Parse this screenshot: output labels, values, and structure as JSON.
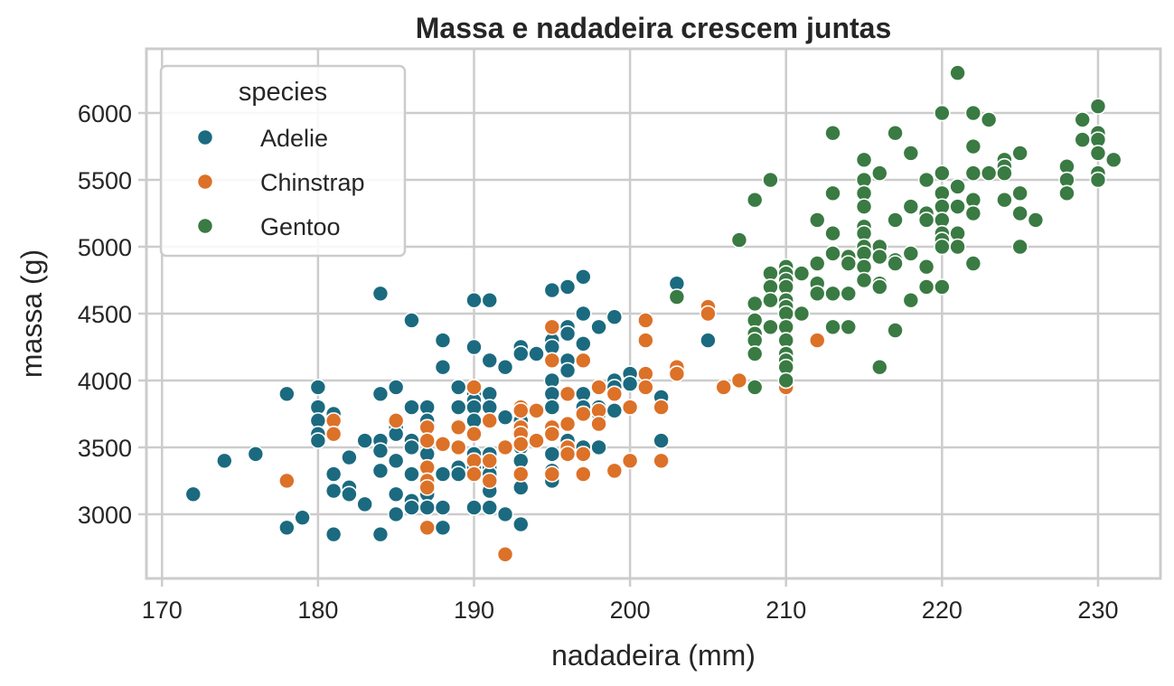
{
  "chart_data": {
    "type": "scatter",
    "title": "Massa e nadadeira crescem juntas",
    "xlabel": "nadadeira (mm)",
    "ylabel": "massa (g)",
    "xlim": [
      169,
      234
    ],
    "ylim": [
      2520,
      6480
    ],
    "xticks": [
      170,
      180,
      190,
      200,
      210,
      220,
      230
    ],
    "yticks": [
      3000,
      3500,
      4000,
      4500,
      5000,
      5500,
      6000
    ],
    "grid": true,
    "legend": {
      "title": "species",
      "position": "top-left"
    },
    "series": [
      {
        "name": "Adelie",
        "color": "#1b6a80",
        "points": [
          [
            172,
            3150
          ],
          [
            174,
            3400
          ],
          [
            176,
            3450
          ],
          [
            178,
            3900
          ],
          [
            178,
            2900
          ],
          [
            179,
            2975
          ],
          [
            180,
            3950
          ],
          [
            180,
            3800
          ],
          [
            180,
            3700
          ],
          [
            180,
            3600
          ],
          [
            180,
            3550
          ],
          [
            181,
            3750
          ],
          [
            181,
            3300
          ],
          [
            181,
            3175
          ],
          [
            181,
            2850
          ],
          [
            182,
            3425
          ],
          [
            182,
            3200
          ],
          [
            182,
            3150
          ],
          [
            183,
            3550
          ],
          [
            183,
            3075
          ],
          [
            184,
            4650
          ],
          [
            184,
            3900
          ],
          [
            184,
            3550
          ],
          [
            184,
            3475
          ],
          [
            184,
            3325
          ],
          [
            184,
            2850
          ],
          [
            185,
            3950
          ],
          [
            185,
            3650
          ],
          [
            185,
            3600
          ],
          [
            185,
            3400
          ],
          [
            185,
            3150
          ],
          [
            185,
            3000
          ],
          [
            186,
            4450
          ],
          [
            186,
            3800
          ],
          [
            186,
            3550
          ],
          [
            186,
            3500
          ],
          [
            186,
            3300
          ],
          [
            186,
            3100
          ],
          [
            186,
            3050
          ],
          [
            187,
            3800
          ],
          [
            187,
            3700
          ],
          [
            187,
            3650
          ],
          [
            187,
            3450
          ],
          [
            187,
            3350
          ],
          [
            187,
            3250
          ],
          [
            187,
            3200
          ],
          [
            187,
            3150
          ],
          [
            187,
            3050
          ],
          [
            188,
            4300
          ],
          [
            188,
            4100
          ],
          [
            188,
            3525
          ],
          [
            188,
            3300
          ],
          [
            188,
            3050
          ],
          [
            188,
            2900
          ],
          [
            189,
            3950
          ],
          [
            189,
            3800
          ],
          [
            189,
            3650
          ],
          [
            189,
            3500
          ],
          [
            189,
            3350
          ],
          [
            189,
            3300
          ],
          [
            190,
            4600
          ],
          [
            190,
            4250
          ],
          [
            190,
            3950
          ],
          [
            190,
            3900
          ],
          [
            190,
            3850
          ],
          [
            190,
            3800
          ],
          [
            190,
            3700
          ],
          [
            190,
            3600
          ],
          [
            190,
            3450
          ],
          [
            190,
            3400
          ],
          [
            190,
            3350
          ],
          [
            190,
            3050
          ],
          [
            191,
            4600
          ],
          [
            191,
            4150
          ],
          [
            191,
            3900
          ],
          [
            191,
            3800
          ],
          [
            191,
            3700
          ],
          [
            191,
            3450
          ],
          [
            191,
            3350
          ],
          [
            191,
            3300
          ],
          [
            191,
            3175
          ],
          [
            191,
            3050
          ],
          [
            192,
            4100
          ],
          [
            192,
            3725
          ],
          [
            192,
            3000
          ],
          [
            193,
            4250
          ],
          [
            193,
            4200
          ],
          [
            193,
            3800
          ],
          [
            193,
            3700
          ],
          [
            193,
            3600
          ],
          [
            193,
            3500
          ],
          [
            193,
            3400
          ],
          [
            193,
            3200
          ],
          [
            193,
            2925
          ],
          [
            194,
            4200
          ],
          [
            194,
            3775
          ],
          [
            194,
            3550
          ],
          [
            195,
            4675
          ],
          [
            195,
            4300
          ],
          [
            195,
            4250
          ],
          [
            195,
            4000
          ],
          [
            195,
            3900
          ],
          [
            195,
            3800
          ],
          [
            195,
            3650
          ],
          [
            195,
            3450
          ],
          [
            195,
            3325
          ],
          [
            195,
            3250
          ],
          [
            196,
            4700
          ],
          [
            196,
            4400
          ],
          [
            196,
            4350
          ],
          [
            196,
            4150
          ],
          [
            196,
            4075
          ],
          [
            196,
            3550
          ],
          [
            196,
            3500
          ],
          [
            197,
            4775
          ],
          [
            197,
            4500
          ],
          [
            197,
            4275
          ],
          [
            197,
            3900
          ],
          [
            197,
            3800
          ],
          [
            197,
            3500
          ],
          [
            198,
            4400
          ],
          [
            198,
            3800
          ],
          [
            198,
            3750
          ],
          [
            198,
            3500
          ],
          [
            199,
            4475
          ],
          [
            199,
            4000
          ],
          [
            199,
            3950
          ],
          [
            199,
            3775
          ],
          [
            200,
            4050
          ],
          [
            200,
            3975
          ],
          [
            202,
            3875
          ],
          [
            202,
            3550
          ],
          [
            203,
            4725
          ],
          [
            205,
            4300
          ]
        ]
      },
      {
        "name": "Chinstrap",
        "color": "#dc7128",
        "points": [
          [
            178,
            3250
          ],
          [
            181,
            3700
          ],
          [
            181,
            3600
          ],
          [
            185,
            3700
          ],
          [
            187,
            3650
          ],
          [
            187,
            3550
          ],
          [
            187,
            3350
          ],
          [
            187,
            3250
          ],
          [
            187,
            3200
          ],
          [
            187,
            2900
          ],
          [
            188,
            3525
          ],
          [
            189,
            3650
          ],
          [
            189,
            3500
          ],
          [
            190,
            3950
          ],
          [
            190,
            3600
          ],
          [
            190,
            3400
          ],
          [
            190,
            3300
          ],
          [
            191,
            3700
          ],
          [
            191,
            3400
          ],
          [
            191,
            3250
          ],
          [
            192,
            3500
          ],
          [
            192,
            2700
          ],
          [
            193,
            3800
          ],
          [
            193,
            3775
          ],
          [
            193,
            3650
          ],
          [
            193,
            3600
          ],
          [
            193,
            3525
          ],
          [
            193,
            3300
          ],
          [
            194,
            3775
          ],
          [
            194,
            3550
          ],
          [
            195,
            4400
          ],
          [
            195,
            4150
          ],
          [
            195,
            3650
          ],
          [
            195,
            3600
          ],
          [
            195,
            3300
          ],
          [
            196,
            3900
          ],
          [
            196,
            3675
          ],
          [
            196,
            3500
          ],
          [
            196,
            3450
          ],
          [
            197,
            4150
          ],
          [
            197,
            3750
          ],
          [
            197,
            3450
          ],
          [
            197,
            3300
          ],
          [
            198,
            3950
          ],
          [
            198,
            3775
          ],
          [
            198,
            3675
          ],
          [
            199,
            3900
          ],
          [
            199,
            3325
          ],
          [
            200,
            3800
          ],
          [
            200,
            3400
          ],
          [
            201,
            4450
          ],
          [
            201,
            4300
          ],
          [
            201,
            4050
          ],
          [
            201,
            3950
          ],
          [
            202,
            3800
          ],
          [
            202,
            3400
          ],
          [
            203,
            4100
          ],
          [
            203,
            4050
          ],
          [
            205,
            4550
          ],
          [
            205,
            4500
          ],
          [
            206,
            3950
          ],
          [
            207,
            4000
          ],
          [
            210,
            4800
          ],
          [
            210,
            3950
          ],
          [
            212,
            4300
          ]
        ]
      },
      {
        "name": "Gentoo",
        "color": "#3a7a43",
        "points": [
          [
            203,
            4625
          ],
          [
            207,
            5050
          ],
          [
            208,
            5350
          ],
          [
            208,
            4575
          ],
          [
            208,
            4450
          ],
          [
            208,
            4350
          ],
          [
            208,
            4300
          ],
          [
            208,
            4200
          ],
          [
            208,
            3950
          ],
          [
            209,
            5500
          ],
          [
            209,
            4800
          ],
          [
            209,
            4700
          ],
          [
            209,
            4600
          ],
          [
            209,
            4400
          ],
          [
            210,
            4850
          ],
          [
            210,
            4800
          ],
          [
            210,
            4750
          ],
          [
            210,
            4700
          ],
          [
            210,
            4600
          ],
          [
            210,
            4550
          ],
          [
            210,
            4500
          ],
          [
            210,
            4400
          ],
          [
            210,
            4300
          ],
          [
            210,
            4200
          ],
          [
            210,
            4150
          ],
          [
            210,
            4100
          ],
          [
            210,
            4000
          ],
          [
            211,
            4800
          ],
          [
            211,
            4500
          ],
          [
            212,
            5200
          ],
          [
            212,
            4875
          ],
          [
            212,
            4725
          ],
          [
            212,
            4650
          ],
          [
            213,
            5850
          ],
          [
            213,
            5400
          ],
          [
            213,
            5100
          ],
          [
            213,
            4950
          ],
          [
            213,
            4650
          ],
          [
            213,
            4400
          ],
          [
            214,
            4925
          ],
          [
            214,
            4875
          ],
          [
            214,
            4650
          ],
          [
            214,
            4400
          ],
          [
            215,
            5650
          ],
          [
            215,
            5500
          ],
          [
            215,
            5400
          ],
          [
            215,
            5300
          ],
          [
            215,
            5150
          ],
          [
            215,
            5100
          ],
          [
            215,
            5000
          ],
          [
            215,
            4950
          ],
          [
            215,
            4850
          ],
          [
            215,
            4750
          ],
          [
            216,
            5550
          ],
          [
            216,
            5000
          ],
          [
            216,
            4925
          ],
          [
            216,
            4725
          ],
          [
            216,
            4700
          ],
          [
            216,
            4100
          ],
          [
            217,
            5850
          ],
          [
            217,
            5200
          ],
          [
            217,
            4900
          ],
          [
            217,
            4875
          ],
          [
            217,
            4375
          ],
          [
            218,
            5700
          ],
          [
            218,
            5300
          ],
          [
            218,
            4950
          ],
          [
            218,
            4600
          ],
          [
            219,
            5250
          ],
          [
            219,
            5200
          ],
          [
            219,
            5500
          ],
          [
            219,
            4850
          ],
          [
            219,
            4700
          ],
          [
            220,
            6000
          ],
          [
            220,
            5550
          ],
          [
            220,
            5400
          ],
          [
            220,
            5300
          ],
          [
            220,
            5200
          ],
          [
            220,
            5100
          ],
          [
            220,
            5050
          ],
          [
            220,
            5000
          ],
          [
            220,
            4700
          ],
          [
            221,
            6300
          ],
          [
            221,
            5450
          ],
          [
            221,
            5300
          ],
          [
            221,
            5100
          ],
          [
            221,
            5000
          ],
          [
            222,
            6000
          ],
          [
            222,
            5750
          ],
          [
            222,
            5550
          ],
          [
            222,
            5350
          ],
          [
            222,
            5250
          ],
          [
            222,
            4875
          ],
          [
            223,
            5950
          ],
          [
            223,
            5550
          ],
          [
            224,
            5650
          ],
          [
            224,
            5600
          ],
          [
            224,
            5550
          ],
          [
            224,
            5350
          ],
          [
            225,
            5700
          ],
          [
            225,
            5400
          ],
          [
            225,
            5250
          ],
          [
            225,
            5000
          ],
          [
            226,
            5200
          ],
          [
            228,
            5600
          ],
          [
            228,
            5500
          ],
          [
            228,
            5400
          ],
          [
            229,
            5950
          ],
          [
            229,
            5800
          ],
          [
            230,
            6050
          ],
          [
            230,
            5850
          ],
          [
            230,
            5800
          ],
          [
            230,
            5700
          ],
          [
            230,
            5550
          ],
          [
            230,
            5500
          ],
          [
            231,
            5650
          ]
        ]
      }
    ]
  }
}
